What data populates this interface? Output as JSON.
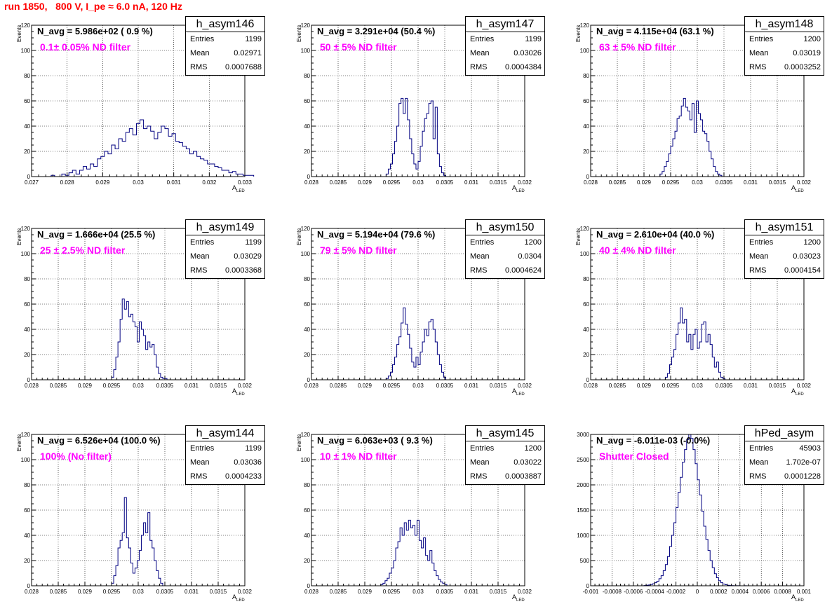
{
  "title": "run 1850,   800 V, I_pe ≈ 6.0 nA, 120 Hz",
  "colors": {
    "title": "#ff0000",
    "histogram": "#000080",
    "filter_label": "#ff00ff",
    "grid": "#000000"
  },
  "chart_data": [
    {
      "type": "bar",
      "name": "h_asym146",
      "title": "N_avg = 5.986e+02 ( 0.9 %)",
      "annotation": "0.1± 0.05% ND filter",
      "xlabel": "A",
      "xlabel_sub": "LED",
      "ylabel": "Events",
      "xlim": [
        0.027,
        0.033
      ],
      "ylim": [
        0,
        120
      ],
      "xticks": [
        0.027,
        0.028,
        0.029,
        0.03,
        0.031,
        0.032,
        0.033
      ],
      "xtick_labels": [
        "0.027",
        "0.028",
        "0.029",
        "0.03",
        "0.031",
        "0.032",
        "0.033"
      ],
      "yticks": [
        0,
        20,
        40,
        60,
        80,
        100,
        120
      ],
      "stats": {
        "entries": "1199",
        "mean": "0.02971",
        "rms": "0.0007688"
      },
      "bin_start": 0.02755,
      "bin_width": 0.0001,
      "values": [
        1,
        0,
        0,
        2,
        1,
        3,
        5,
        2,
        5,
        8,
        6,
        10,
        8,
        14,
        16,
        20,
        18,
        25,
        22,
        30,
        28,
        35,
        38,
        33,
        42,
        45,
        38,
        40,
        36,
        30,
        35,
        40,
        38,
        32,
        34,
        28,
        27,
        24,
        22,
        18,
        20,
        16,
        14,
        13,
        10,
        10,
        8,
        7,
        5,
        5,
        3,
        4,
        2,
        2,
        1,
        1,
        1
      ]
    },
    {
      "type": "bar",
      "name": "h_asym147",
      "title": "N_avg = 3.291e+04 (50.4 %)",
      "annotation": "50 ± 5% ND filter",
      "xlabel": "A",
      "xlabel_sub": "LED",
      "ylabel": "Events",
      "xlim": [
        0.028,
        0.032
      ],
      "ylim": [
        0,
        120
      ],
      "xticks": [
        0.028,
        0.0285,
        0.029,
        0.0295,
        0.03,
        0.0305,
        0.031,
        0.0315,
        0.032
      ],
      "xtick_labels": [
        "0.028",
        "0.0285",
        "0.029",
        "0.0295",
        "0.03",
        "0.0305",
        "0.031",
        "0.0315",
        "0.032"
      ],
      "yticks": [
        0,
        20,
        40,
        60,
        80,
        100,
        120
      ],
      "stats": {
        "entries": "1199",
        "mean": "0.03026",
        "rms": "0.0004384"
      },
      "bin_start": 0.0294,
      "bin_width": 4e-05,
      "values": [
        2,
        6,
        10,
        18,
        28,
        40,
        58,
        62,
        50,
        62,
        45,
        30,
        18,
        10,
        6,
        12,
        24,
        36,
        46,
        50,
        58,
        60,
        30,
        55,
        18,
        8,
        3,
        1
      ]
    },
    {
      "type": "bar",
      "name": "h_asym148",
      "title": "N_avg = 4.115e+04 (63.1 %)",
      "annotation": "63 ± 5% ND filter",
      "xlabel": "A",
      "xlabel_sub": "LED",
      "ylabel": "Events",
      "xlim": [
        0.028,
        0.032
      ],
      "ylim": [
        0,
        120
      ],
      "xticks": [
        0.028,
        0.0285,
        0.029,
        0.0295,
        0.03,
        0.0305,
        0.031,
        0.0315,
        0.032
      ],
      "xtick_labels": [
        "0.028",
        "0.0285",
        "0.029",
        "0.0295",
        "0.03",
        "0.0305",
        "0.031",
        "0.0315",
        "0.032"
      ],
      "yticks": [
        0,
        20,
        40,
        60,
        80,
        100,
        120
      ],
      "stats": {
        "entries": "1200",
        "mean": "0.03019",
        "rms": "0.0003252"
      },
      "bin_start": 0.0293,
      "bin_width": 4e-05,
      "values": [
        2,
        4,
        8,
        12,
        18,
        24,
        30,
        36,
        46,
        48,
        56,
        62,
        55,
        52,
        45,
        58,
        35,
        60,
        50,
        45,
        36,
        34,
        28,
        20,
        14,
        8,
        4,
        2,
        1
      ]
    },
    {
      "type": "bar",
      "name": "h_asym149",
      "title": "N_avg = 1.666e+04 (25.5 %)",
      "annotation": "25 ± 2.5% ND filter",
      "xlabel": "A",
      "xlabel_sub": "LED",
      "ylabel": "Events",
      "xlim": [
        0.028,
        0.032
      ],
      "ylim": [
        0,
        120
      ],
      "xticks": [
        0.028,
        0.0285,
        0.029,
        0.0295,
        0.03,
        0.0305,
        0.031,
        0.0315,
        0.032
      ],
      "xtick_labels": [
        "0.028",
        "0.0285",
        "0.029",
        "0.0295",
        "0.03",
        "0.0305",
        "0.031",
        "0.0315",
        "0.032"
      ],
      "yticks": [
        0,
        20,
        40,
        60,
        80,
        100,
        120
      ],
      "stats": {
        "entries": "1199",
        "mean": "0.03029",
        "rms": "0.0003368"
      },
      "bin_start": 0.0295,
      "bin_width": 4e-05,
      "values": [
        2,
        8,
        18,
        30,
        48,
        64,
        56,
        62,
        50,
        52,
        46,
        42,
        30,
        46,
        40,
        35,
        24,
        30,
        26,
        28,
        20,
        10,
        5,
        2,
        1,
        1
      ]
    },
    {
      "type": "bar",
      "name": "h_asym150",
      "title": "N_avg = 5.194e+04 (79.6 %)",
      "annotation": "79 ± 5% ND filter",
      "xlabel": "A",
      "xlabel_sub": "LED",
      "ylabel": "Events",
      "xlim": [
        0.028,
        0.032
      ],
      "ylim": [
        0,
        120
      ],
      "xticks": [
        0.028,
        0.0285,
        0.029,
        0.0295,
        0.03,
        0.0305,
        0.031,
        0.0315,
        0.032
      ],
      "xtick_labels": [
        "0.028",
        "0.0285",
        "0.029",
        "0.0295",
        "0.03",
        "0.0305",
        "0.031",
        "0.0315",
        "0.032"
      ],
      "yticks": [
        0,
        20,
        40,
        60,
        80,
        100,
        120
      ],
      "stats": {
        "entries": "1200",
        "mean": "0.0304",
        "rms": "0.0004624"
      },
      "bin_start": 0.0294,
      "bin_width": 4e-05,
      "values": [
        1,
        3,
        6,
        12,
        18,
        28,
        34,
        45,
        57,
        44,
        36,
        25,
        14,
        10,
        18,
        12,
        22,
        30,
        40,
        35,
        46,
        48,
        40,
        30,
        20,
        12,
        6,
        2
      ]
    },
    {
      "type": "bar",
      "name": "h_asym151",
      "title": "N_avg = 2.610e+04 (40.0 %)",
      "annotation": "40 ± 4% ND filter",
      "xlabel": "A",
      "xlabel_sub": "LED",
      "ylabel": "Events",
      "xlim": [
        0.028,
        0.032
      ],
      "ylim": [
        0,
        120
      ],
      "xticks": [
        0.028,
        0.0285,
        0.029,
        0.0295,
        0.03,
        0.0305,
        0.031,
        0.0315,
        0.032
      ],
      "xtick_labels": [
        "0.028",
        "0.0285",
        "0.029",
        "0.0295",
        "0.03",
        "0.0305",
        "0.031",
        "0.0315",
        "0.032"
      ],
      "yticks": [
        0,
        20,
        40,
        60,
        80,
        100,
        120
      ],
      "stats": {
        "entries": "1200",
        "mean": "0.03023",
        "rms": "0.0004154"
      },
      "bin_start": 0.0294,
      "bin_width": 4e-05,
      "values": [
        2,
        5,
        12,
        18,
        24,
        36,
        45,
        57,
        45,
        48,
        30,
        36,
        24,
        36,
        40,
        25,
        30,
        44,
        46,
        30,
        36,
        28,
        18,
        10,
        14,
        6,
        2,
        1
      ]
    },
    {
      "type": "bar",
      "name": "h_asym144",
      "title": "N_avg = 6.526e+04 (100.0 %)",
      "annotation": "100% (No filter)",
      "xlabel": "A",
      "xlabel_sub": "LED",
      "ylabel": "Events",
      "xlim": [
        0.028,
        0.032
      ],
      "ylim": [
        0,
        120
      ],
      "xticks": [
        0.028,
        0.0285,
        0.029,
        0.0295,
        0.03,
        0.0305,
        0.031,
        0.0315,
        0.032
      ],
      "xtick_labels": [
        "0.028",
        "0.0285",
        "0.029",
        "0.0295",
        "0.03",
        "0.0305",
        "0.031",
        "0.0315",
        "0.032"
      ],
      "yticks": [
        0,
        20,
        40,
        60,
        80,
        100,
        120
      ],
      "stats": {
        "entries": "1199",
        "mean": "0.03036",
        "rms": "0.0004233"
      },
      "bin_start": 0.0295,
      "bin_width": 4e-05,
      "values": [
        2,
        8,
        16,
        30,
        36,
        42,
        70,
        38,
        30,
        18,
        10,
        14,
        20,
        28,
        40,
        50,
        42,
        58,
        36,
        30,
        20,
        12,
        6,
        2
      ]
    },
    {
      "type": "bar",
      "name": "h_asym145",
      "title": "N_avg = 6.063e+03 ( 9.3 %)",
      "annotation": "10 ± 1% ND filter",
      "xlabel": "A",
      "xlabel_sub": "LED",
      "ylabel": "Events",
      "xlim": [
        0.028,
        0.032
      ],
      "ylim": [
        0,
        120
      ],
      "xticks": [
        0.028,
        0.0285,
        0.029,
        0.0295,
        0.03,
        0.0305,
        0.031,
        0.0315,
        0.032
      ],
      "xtick_labels": [
        "0.028",
        "0.0285",
        "0.029",
        "0.0295",
        "0.03",
        "0.0305",
        "0.031",
        "0.0315",
        "0.032"
      ],
      "yticks": [
        0,
        20,
        40,
        60,
        80,
        100,
        120
      ],
      "stats": {
        "entries": "1200",
        "mean": "0.03022",
        "rms": "0.0003887"
      },
      "bin_start": 0.0293,
      "bin_width": 4e-05,
      "values": [
        1,
        2,
        4,
        6,
        10,
        14,
        20,
        30,
        35,
        46,
        40,
        50,
        44,
        52,
        46,
        48,
        40,
        52,
        36,
        30,
        38,
        24,
        20,
        28,
        18,
        12,
        8,
        5,
        3,
        2,
        1
      ]
    },
    {
      "type": "bar",
      "name": "hPed_asym",
      "title": "N_avg = -6.011e-03 (-0.0%)",
      "annotation": "Shutter Closed",
      "xlabel": "A",
      "xlabel_sub": "LED",
      "ylabel": "",
      "xlim": [
        -0.001,
        0.001
      ],
      "ylim": [
        0,
        3000
      ],
      "xticks": [
        -0.001,
        -0.0008,
        -0.0006,
        -0.0004,
        -0.0002,
        0,
        0.0002,
        0.0004,
        0.0006,
        0.0008,
        0.001
      ],
      "xtick_labels": [
        "-0.001",
        "-0.0008",
        "-0.0006",
        "-0.0004",
        "-0.0002",
        "0",
        "0.0002",
        "0.0004",
        "0.0006",
        "0.0008",
        "0.001"
      ],
      "yticks": [
        0,
        500,
        1000,
        1500,
        2000,
        2500,
        3000
      ],
      "stats": {
        "entries": "45903",
        "mean": "1.702e-07",
        "rms": "0.0001228"
      },
      "bin_start": -0.0005,
      "bin_width": 2e-05,
      "values": [
        5,
        10,
        15,
        25,
        40,
        60,
        90,
        140,
        200,
        300,
        420,
        580,
        780,
        1000,
        1250,
        1550,
        1850,
        2150,
        2450,
        2700,
        2900,
        3000,
        2920,
        2700,
        2420,
        2100,
        1800,
        1480,
        1180,
        920,
        700,
        500,
        360,
        240,
        160,
        100,
        60,
        35,
        20,
        10,
        5,
        3,
        1,
        1,
        1,
        0,
        0,
        1,
        0,
        0
      ]
    }
  ]
}
